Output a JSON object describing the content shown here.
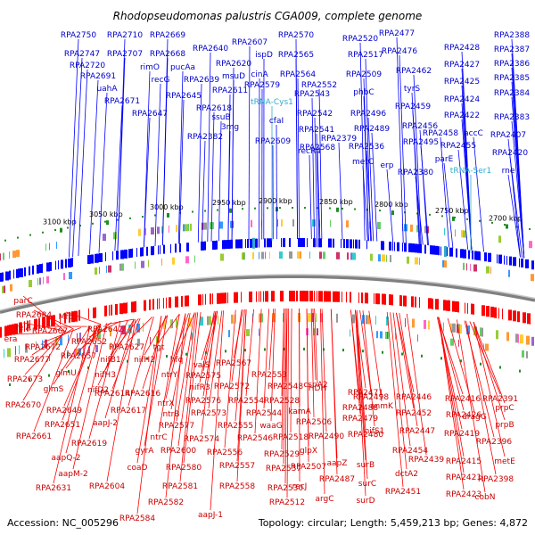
{
  "title": "Rhodopseudomonas palustris CGA009, complete genome",
  "footer": {
    "accession": "Accession: NC_005296",
    "topology": "Topology: circular; Length: 5,459,213 bp; Genes: 4,872"
  },
  "colors": {
    "forward": "#0000ff",
    "reverse": "#ff0000",
    "rna": "#33aacc",
    "backbone": "#808080",
    "tick_dot": "#228b22"
  },
  "ticks": [
    "3100 kbp",
    "3050 kbp",
    "3000 kbp",
    "2950 kbp",
    "2900 kbp",
    "2850 kbp",
    "2800 kbp",
    "2750 kbp",
    "2700 kbp"
  ],
  "genes_forward": [
    "RPA2750",
    "RPA2710",
    "RPA2669",
    "RPA2747",
    "RPA2707",
    "RPA2668",
    "RPA2720",
    "rimO",
    "pucAa",
    "RPA2640",
    "RPA2607",
    "RPA2570",
    "RPA2520",
    "RPA2477",
    "RPA2388",
    "RPA2691",
    "recG",
    "RPA2620",
    "ispD",
    "RPA2565",
    "RPA2517",
    "RPA2476",
    "RPA2387",
    "uahA",
    "RPA2639",
    "msuD",
    "cinA",
    "RPA2564",
    "RPA2509",
    "RPA2462",
    "RPA2428",
    "RPA2386",
    "RPA2671",
    "RPA2645",
    "RPA2611",
    "RPA2579",
    "RPA2552",
    "RPA2427",
    "RPA2385",
    "RPA2647",
    "RPA2618",
    "RPA2543",
    "phbC",
    "tyrS",
    "RPA2425",
    "RPA2384",
    "ssuB",
    "RPA2542",
    "RPA2496",
    "RPA2459",
    "RPA2424",
    "RPA2383",
    "3mg",
    "cfaI",
    "RPA2541",
    "RPA2489",
    "RPA2456",
    "RPA2422",
    "RPA2382",
    "RPA2609",
    "RPA2568",
    "RPA2536",
    "RPA2495",
    "RPA2458",
    "accC",
    "RPA2407",
    "recR4",
    "metC",
    "erp",
    "parE",
    "RPA2455",
    "RPA2420",
    "RPA2380",
    "rne",
    "RPA2379"
  ],
  "genes_rna": [
    "tRNA-Cys1",
    "tRNA-Ser1"
  ],
  "genes_reverse": [
    "parC",
    "RPA2684",
    "relA",
    "Mfd",
    "era",
    "RPA2667",
    "RPA2642",
    "RPA2672",
    "RPA2652",
    "RPA2677",
    "RPA2657",
    "RPA2627",
    "tgt",
    "nifB1",
    "nifH2",
    "hfq",
    "RPA2567",
    "RPA2673",
    "glmU",
    "nifH3",
    "ntrY",
    "valS",
    "RPA2575",
    "RPA2553",
    "glmS",
    "nifD2",
    "RPA2614",
    "RPA2616",
    "nifR3",
    "RPA2572",
    "RPA2548",
    "cspA2",
    "HDH",
    "RPA2670",
    "RPA2649",
    "ntrX",
    "RPA2576",
    "RPA2554",
    "RPA2528",
    "RPA2498",
    "RPA2471",
    "RPA2446",
    "RPA2416",
    "RPA2391",
    "RPA2651",
    "RPA2617",
    "ntrB",
    "RPA2573",
    "RPA2544",
    "kamA",
    "RPA2488",
    "anmK",
    "RPA2452",
    "RPA2426",
    "dragG",
    "prpC",
    "RPA2661",
    "aapJ-2",
    "RPA2577",
    "RPA2555",
    "waaG",
    "RPA2506",
    "RPA2479",
    "RPA2447",
    "RPA2419",
    "prpB",
    "RPA2619",
    "ntrC",
    "RPA2574",
    "RPA2546",
    "RPA2518",
    "RPA2490",
    "RPA2480",
    "RPA2396",
    "aapQ-2",
    "gyrA",
    "RPA2600",
    "RPA2556",
    "RPA2529",
    "glpX",
    "nifS1",
    "RPA2454",
    "RPA2439",
    "RPA2415",
    "metE",
    "aapM-2",
    "coaD",
    "RPA2580",
    "RPA2557",
    "RPA2537",
    "RPA2507",
    "aapZ",
    "surB",
    "dctA2",
    "RPA2421",
    "RPA2398",
    "RPA2631",
    "RPA2604",
    "RPA2581",
    "RPA2558",
    "RPA2530",
    "recJ",
    "RPA2487",
    "surC",
    "RPA2451",
    "RPA2423",
    "cobN",
    "RPA2582",
    "RPA2512",
    "argC",
    "surD",
    "RPA2584",
    "aapJ-1"
  ]
}
